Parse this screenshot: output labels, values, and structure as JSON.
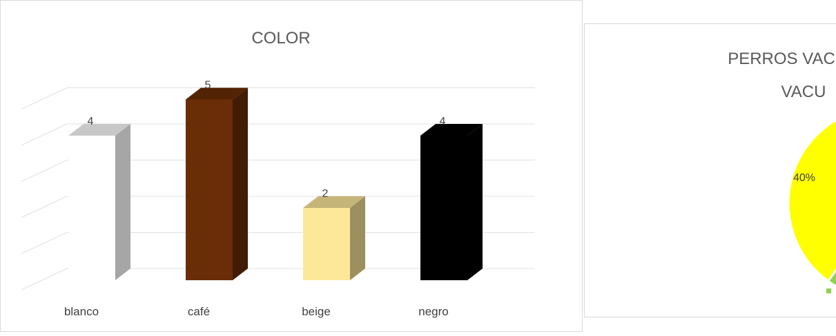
{
  "chart_data": [
    {
      "type": "bar",
      "title": "COLOR",
      "categories": [
        "blanco",
        "café",
        "beige",
        "negro"
      ],
      "values": [
        4,
        5,
        2,
        4
      ],
      "bar_colors": [
        "#ffffff",
        "#6b2d07",
        "#fde89a",
        "#000000"
      ],
      "grid": true,
      "ylim": [
        0,
        5
      ]
    },
    {
      "type": "pie",
      "title": "PERROS VAC VACU",
      "slices": [
        {
          "label": "40%",
          "value": 40,
          "color": "#ffff00"
        },
        {
          "label": "",
          "value": 60,
          "color": "#92d050"
        }
      ]
    }
  ]
}
